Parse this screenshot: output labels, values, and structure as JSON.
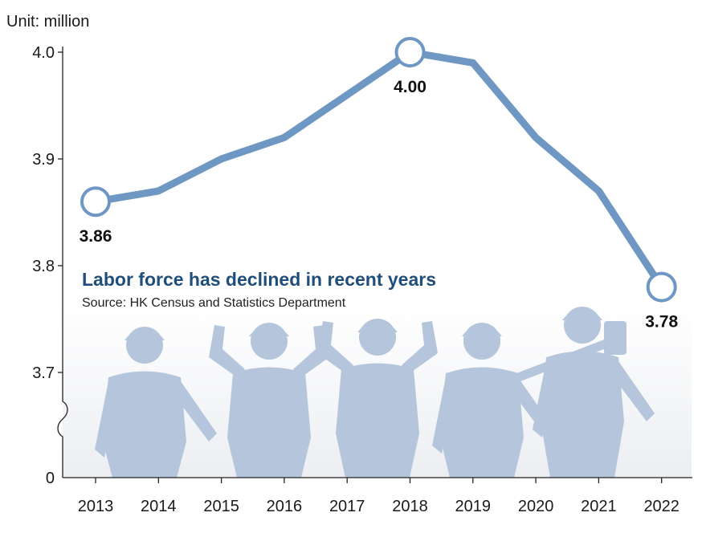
{
  "chart_data": {
    "type": "line",
    "title": "Labor force has declined in recent years",
    "subtitle": "Source: HK Census and Statistics Department",
    "unit_label": "Unit: million",
    "x": [
      "2013",
      "2014",
      "2015",
      "2016",
      "2017",
      "2018",
      "2019",
      "2020",
      "2021",
      "2022"
    ],
    "series": [
      {
        "values": [
          3.86,
          3.87,
          3.9,
          3.92,
          3.96,
          4.0,
          3.99,
          3.92,
          3.87,
          3.78
        ]
      }
    ],
    "yticks": [
      "4.0",
      "3.9",
      "3.8",
      "3.7",
      "0"
    ],
    "ylim": [
      3.6,
      4.0
    ],
    "axis_break": true,
    "data_labels": [
      {
        "x": "2013",
        "text": "3.86"
      },
      {
        "x": "2018",
        "text": "4.00"
      },
      {
        "x": "2022",
        "text": "3.78"
      }
    ],
    "grid": false,
    "colors": {
      "line": "#6f97c4",
      "marker_fill": "#ffffff",
      "title": "#1f4e7a",
      "silhouettes": "#b4c5dc",
      "background_band": "#eef0f3",
      "axis": "#222222"
    }
  }
}
